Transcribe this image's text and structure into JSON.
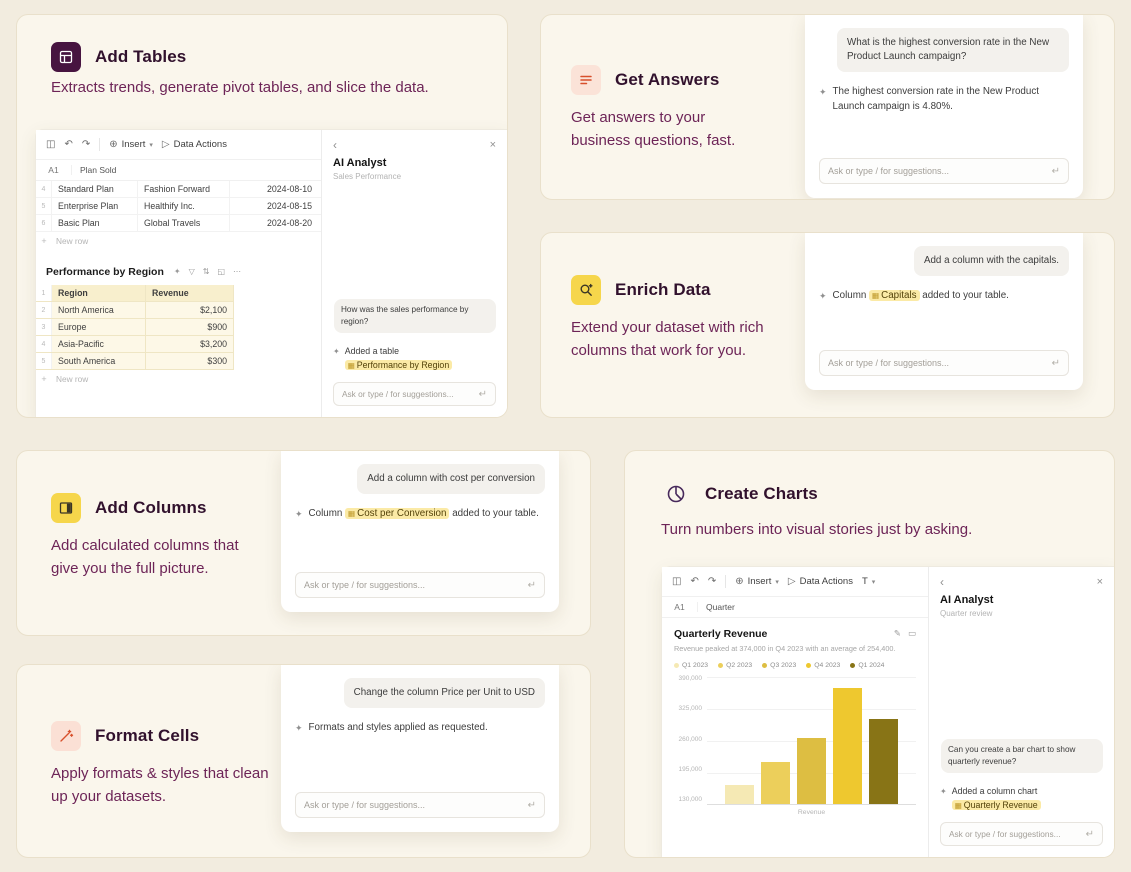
{
  "ui": {
    "input_placeholder": "Ask or type / for suggestions...",
    "new_row_label": "New row"
  },
  "icons": {
    "sidebar_toggle": "◫",
    "undo": "↶",
    "redo": "↷",
    "insert_plus": "⊕",
    "caret_down": "▾",
    "play": "▷",
    "text_tool": "T",
    "back": "‹",
    "close": "×",
    "return_key": "↵",
    "sparkle": "✦",
    "more": "⋯",
    "filter": "▽",
    "sort": "⇅",
    "expand": "◱",
    "edit": "✎",
    "frame": "▭",
    "chip_table": "▦",
    "plus": "+"
  },
  "cards": {
    "add_tables": {
      "title": "Add Tables",
      "description": "Extracts trends, generate pivot tables, and slice the data.",
      "mockup": {
        "toolbar": {
          "insert_label": "Insert",
          "data_actions_label": "Data Actions"
        },
        "formula_bar": {
          "cell_ref": "A1",
          "value": "Plan Sold"
        },
        "plans_table": {
          "rows": [
            {
              "num": "4",
              "plan": "Standard Plan",
              "company": "Fashion Forward",
              "date": "2024-08-10"
            },
            {
              "num": "5",
              "plan": "Enterprise Plan",
              "company": "Healthify Inc.",
              "date": "2024-08-15"
            },
            {
              "num": "6",
              "plan": "Basic Plan",
              "company": "Global Travels",
              "date": "2024-08-20"
            }
          ]
        },
        "region_table": {
          "title": "Performance by Region",
          "header_num": "1",
          "headers": [
            "Region",
            "Revenue"
          ],
          "rows": [
            {
              "num": "2",
              "region": "North America",
              "revenue": "$2,100"
            },
            {
              "num": "3",
              "region": "Europe",
              "revenue": "$900"
            },
            {
              "num": "4",
              "region": "Asia-Pacific",
              "revenue": "$3,200"
            },
            {
              "num": "5",
              "region": "South America",
              "revenue": "$300"
            }
          ]
        },
        "panel": {
          "title": "AI Analyst",
          "subtitle": "Sales Performance",
          "user_message": "How was the sales performance by region?",
          "ai_prefix": "Added a table",
          "ai_chip": "Performance by Region"
        }
      }
    },
    "get_answers": {
      "title": "Get Answers",
      "description": "Get answers to your business questions, fast.",
      "mockup": {
        "user_message": "What is the highest conversion rate in the New Product Launch campaign?",
        "ai_message": "The highest conversion rate in the New Product Launch campaign is 4.80%."
      }
    },
    "enrich_data": {
      "title": "Enrich Data",
      "description": "Extend your dataset with rich columns that work for you.",
      "mockup": {
        "user_message": "Add a column with the capitals.",
        "ai_prefix": "Column",
        "ai_chip": "Capitals",
        "ai_suffix": "added to your table."
      }
    },
    "add_columns": {
      "title": "Add Columns",
      "description": "Add calculated columns that give you the full picture.",
      "mockup": {
        "user_message": "Add a column with cost per conversion",
        "ai_prefix": "Column",
        "ai_chip": "Cost per Conversion",
        "ai_suffix": "added to your table."
      }
    },
    "format_cells": {
      "title": "Format Cells",
      "description": "Apply formats & styles that clean up your datasets.",
      "mockup": {
        "user_message": "Change the column Price per Unit to USD",
        "ai_message": "Formats and styles applied as requested."
      }
    },
    "create_charts": {
      "title": "Create Charts",
      "description": "Turn numbers into visual stories just by asking.",
      "mockup": {
        "toolbar": {
          "insert_label": "Insert",
          "data_actions_label": "Data Actions"
        },
        "formula_bar": {
          "cell_ref": "A1",
          "value": "Quarter"
        },
        "panel": {
          "title": "AI Analyst",
          "subtitle": "Quarter review",
          "user_message": "Can you create a bar chart to show quarterly revenue?",
          "ai_prefix": "Added a column chart",
          "ai_chip": "Quarterly Revenue"
        }
      }
    }
  },
  "chart_data": {
    "type": "bar",
    "title": "Quarterly Revenue",
    "subtitle": "Revenue peaked at 374,000 in Q4 2023 with an average of 254,400.",
    "categories": [
      "Q1 2023",
      "Q2 2023",
      "Q3 2023",
      "Q4 2023",
      "Q1 2024"
    ],
    "values": [
      145000,
      198000,
      255000,
      374000,
      300000
    ],
    "bar_colors": [
      "#f5e9b4",
      "#eccf5b",
      "#ddbe42",
      "#eec82f",
      "#887416"
    ],
    "y_ticks": [
      "390,000",
      "325,000",
      "260,000",
      "195,000",
      "130,000"
    ],
    "ylim": [
      130000,
      390000
    ],
    "render_range": [
      100000,
      400000
    ],
    "xlabel": "Revenue",
    "ylabel": "",
    "legend_position": "top",
    "grid": true
  },
  "colors": {
    "page_bg": "#f2ecdf",
    "card_bg": "#faf6ec",
    "card_border": "#e9e0cb",
    "heading": "#31112d",
    "body_text": "#6d2457",
    "chip_bg": "#fbeaa6",
    "accent_dark_purple": "#471440",
    "accent_yellow": "#f6d64b",
    "accent_red": "#d8502c"
  }
}
